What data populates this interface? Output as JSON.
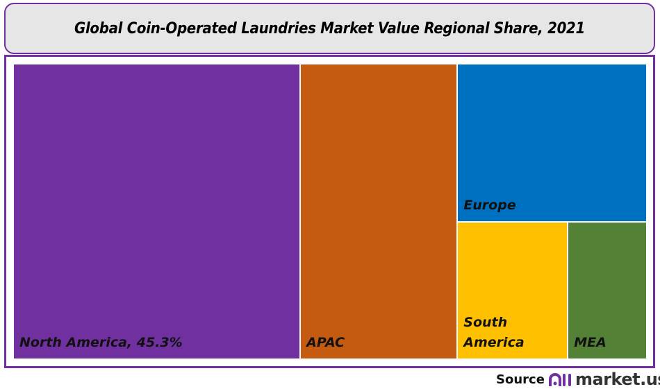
{
  "chart_data": {
    "type": "treemap",
    "title": "Global Coin-Operated Laundries Market Value Regional Share, 2021",
    "unit": "%",
    "items": [
      {
        "label": "North America, 45.3%",
        "name": "North America",
        "value": 45.3,
        "color": "#7030a0"
      },
      {
        "label": "APAC",
        "name": "APAC",
        "value": 24.8,
        "color": "#c55a11"
      },
      {
        "label": "Europe",
        "name": "Europe",
        "value": 16.0,
        "color": "#0070c0"
      },
      {
        "label": "South America",
        "name": "South America",
        "value": 8.1,
        "color": "#ffc000"
      },
      {
        "label": "MEA",
        "name": "MEA",
        "value": 5.8,
        "color": "#538135"
      }
    ]
  },
  "footer": {
    "source_label": "Source",
    "brand": "market.us",
    "brand_color": "#7030a0"
  }
}
